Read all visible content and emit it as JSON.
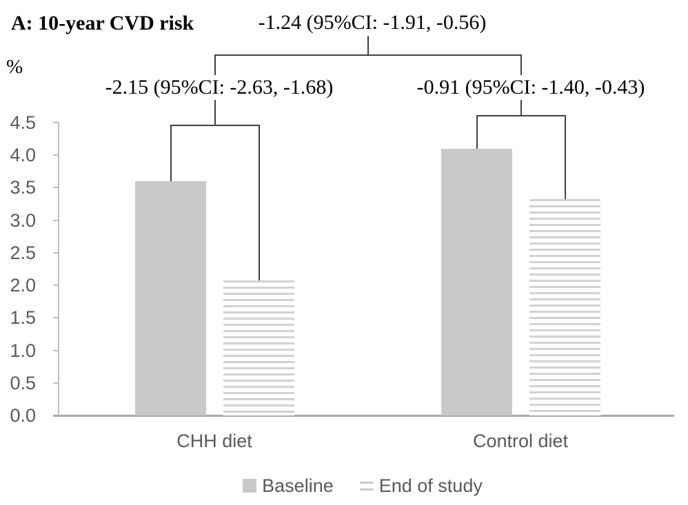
{
  "figure": {
    "title": "A: 10-year CVD risk",
    "unit_label": "%",
    "annotations": {
      "overall": "-1.24 (95%CI: -1.91, -0.56)",
      "chh": "-2.15 (95%CI: -2.63, -1.68)",
      "control": "-0.91 (95%CI: -1.40, -0.43)"
    }
  },
  "chart_data": {
    "type": "bar",
    "title": "A: 10-year CVD risk",
    "ylabel": "%",
    "ylim": [
      0,
      4.5
    ],
    "ytick_step": 0.5,
    "yticks": [
      "4.5",
      "4.0",
      "3.5",
      "3.0",
      "2.5",
      "2.0",
      "1.5",
      "1.0",
      "0.5",
      "0.0"
    ],
    "grid": false,
    "legend_position": "bottom",
    "categories": [
      "CHH diet",
      "Control diet"
    ],
    "series": [
      {
        "name": "Baseline",
        "style": "solid",
        "values": [
          3.6,
          4.1
        ]
      },
      {
        "name": "End of study",
        "style": "striped",
        "values": [
          2.08,
          3.33
        ]
      }
    ],
    "annotations": [
      {
        "text": "-1.24 (95%CI: -1.91, -0.56)",
        "between": "CHH diet vs Control diet"
      },
      {
        "text": "-2.15 (95%CI: -2.63, -1.68)",
        "between": "CHH diet baseline vs end of study"
      },
      {
        "text": "-0.91 (95%CI: -1.40, -0.43)",
        "between": "Control diet baseline vs end of study"
      }
    ]
  },
  "legend": {
    "items": [
      {
        "label": "Baseline",
        "swatch": "solid"
      },
      {
        "label": "End of study",
        "swatch": "striped"
      }
    ]
  },
  "colors": {
    "bar_solid": "#c9c9c9",
    "bar_stripe": "#d2d2d2",
    "bracket": "#404040",
    "axis_text": "#595959",
    "axis_line": "#bfbfbf",
    "x_axis_line": "#ababab",
    "text": "#000000"
  }
}
